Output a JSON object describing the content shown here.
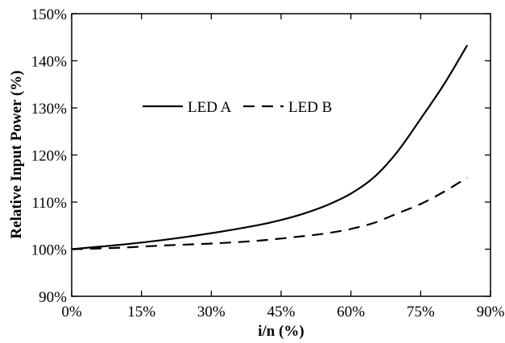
{
  "chart_data": {
    "type": "line",
    "title": "",
    "xlabel": "i/n (%)",
    "ylabel": "Relative Input Power (%)",
    "xlim": [
      0,
      90
    ],
    "ylim": [
      90,
      150
    ],
    "x_ticks": [
      0,
      15,
      30,
      45,
      60,
      75,
      90
    ],
    "y_ticks": [
      90,
      100,
      110,
      120,
      130,
      140,
      150
    ],
    "x_tick_labels": [
      "0%",
      "15%",
      "30%",
      "45%",
      "60%",
      "75%",
      "90%"
    ],
    "y_tick_labels": [
      "90%",
      "100%",
      "110%",
      "120%",
      "130%",
      "140%",
      "150%"
    ],
    "grid": false,
    "legend_position": "upper-left-center",
    "series": [
      {
        "name": "LED A",
        "line_style": "solid",
        "x": [
          0,
          10,
          20,
          30,
          40,
          45,
          50,
          55,
          60,
          65,
          70,
          75,
          80,
          85
        ],
        "y": [
          100,
          100.9,
          102,
          103.4,
          105.1,
          106.2,
          107.6,
          109.4,
          111.8,
          115.3,
          120.7,
          127.7,
          135.0,
          143.3
        ]
      },
      {
        "name": "LED B",
        "line_style": "dashed",
        "x": [
          0,
          10,
          20,
          30,
          40,
          50,
          55,
          60,
          65,
          70,
          75,
          80,
          85
        ],
        "y": [
          100,
          100.3,
          100.8,
          101.2,
          101.8,
          102.8,
          103.4,
          104.3,
          105.6,
          107.6,
          109.6,
          112.2,
          115.2
        ]
      }
    ]
  }
}
